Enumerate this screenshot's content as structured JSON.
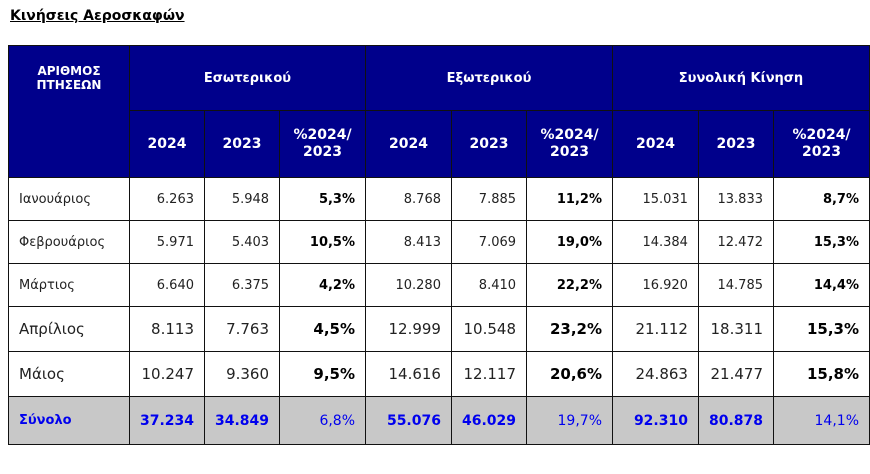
{
  "title": "Κινήσεις Αεροσκαφών",
  "header": {
    "corner": [
      "ΑΡΙΘΜΟΣ",
      "ΠΤΗΣΕΩΝ"
    ],
    "groups": [
      "Εσωτερικού",
      "Εξωτερικού",
      "Συνολική Κίνηση"
    ],
    "sub": {
      "y2024": "2024",
      "y2023": "2023",
      "pct_line1": "%2024/",
      "pct_line2": "2023"
    }
  },
  "rows": [
    {
      "month": "Ιανουάριος",
      "dom2024": "6.263",
      "dom2023": "5.948",
      "dompct": "5,3%",
      "int2024": "8.768",
      "int2023": "7.885",
      "intpct": "11,2%",
      "tot2024": "15.031",
      "tot2023": "13.833",
      "totpct": "8,7%"
    },
    {
      "month": "Φεβρουάριος",
      "dom2024": "5.971",
      "dom2023": "5.403",
      "dompct": "10,5%",
      "int2024": "8.413",
      "int2023": "7.069",
      "intpct": "19,0%",
      "tot2024": "14.384",
      "tot2023": "12.472",
      "totpct": "15,3%"
    },
    {
      "month": "Μάρτιος",
      "dom2024": "6.640",
      "dom2023": "6.375",
      "dompct": "4,2%",
      "int2024": "10.280",
      "int2023": "8.410",
      "intpct": "22,2%",
      "tot2024": "16.920",
      "tot2023": "14.785",
      "totpct": "14,4%"
    },
    {
      "month": "Απρίλιος",
      "dom2024": "8.113",
      "dom2023": "7.763",
      "dompct": "4,5%",
      "int2024": "12.999",
      "int2023": "10.548",
      "intpct": "23,2%",
      "tot2024": "21.112",
      "tot2023": "18.311",
      "totpct": "15,3%"
    },
    {
      "month": "Μάιος",
      "dom2024": "10.247",
      "dom2023": "9.360",
      "dompct": "9,5%",
      "int2024": "14.616",
      "int2023": "12.117",
      "intpct": "20,6%",
      "tot2024": "24.863",
      "tot2023": "21.477",
      "totpct": "15,8%"
    }
  ],
  "total": {
    "month": "Σύνολο",
    "dom2024": "37.234",
    "dom2023": "34.849",
    "dompct": "6,8%",
    "int2024": "55.076",
    "int2023": "46.029",
    "intpct": "19,7%",
    "tot2024": "92.310",
    "tot2023": "80.878",
    "totpct": "14,1%"
  },
  "colors": {
    "header_bg": "#00008b",
    "header_text": "#ffffff",
    "total_bg": "#c8c8c8",
    "total_text": "#0000ee"
  }
}
